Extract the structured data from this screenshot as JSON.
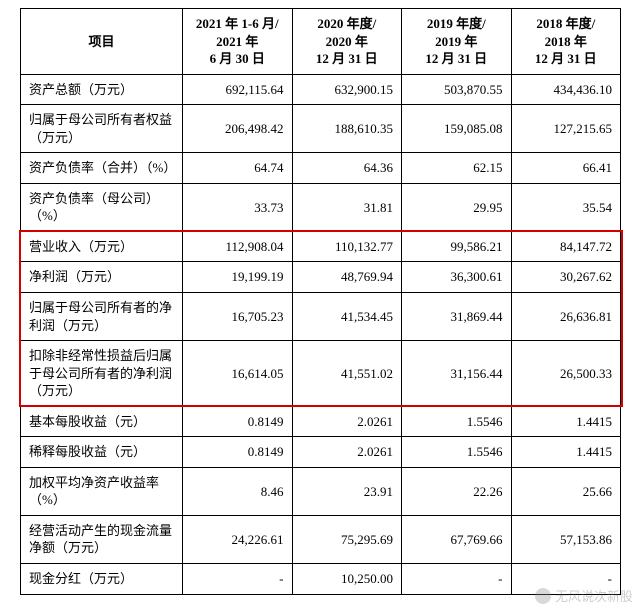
{
  "table": {
    "header_label": "项目",
    "columns": [
      {
        "line1": "2021 年 1-6 月/",
        "line2": "2021 年",
        "line3": "6 月 30 日"
      },
      {
        "line1": "2020 年度/",
        "line2": "2020 年",
        "line3": "12 月 31 日"
      },
      {
        "line1": "2019 年度/",
        "line2": "2019 年",
        "line3": "12 月 31 日"
      },
      {
        "line1": "2018 年度/",
        "line2": "2018 年",
        "line3": "12 月 31 日"
      }
    ],
    "rows": [
      {
        "label": "资产总额（万元）",
        "values": [
          "692,115.64",
          "632,900.15",
          "503,870.55",
          "434,436.10"
        ]
      },
      {
        "label": "归属于母公司所有者权益（万元）",
        "values": [
          "206,498.42",
          "188,610.35",
          "159,085.08",
          "127,215.65"
        ]
      },
      {
        "label": "资产负债率（合并）（%）",
        "values": [
          "64.74",
          "64.36",
          "62.15",
          "66.41"
        ]
      },
      {
        "label": "资产负债率（母公司）（%）",
        "values": [
          "33.73",
          "31.81",
          "29.95",
          "35.54"
        ]
      },
      {
        "label": "营业收入（万元）",
        "values": [
          "112,908.04",
          "110,132.77",
          "99,586.21",
          "84,147.72"
        ]
      },
      {
        "label": "净利润（万元）",
        "values": [
          "19,199.19",
          "48,769.94",
          "36,300.61",
          "30,267.62"
        ]
      },
      {
        "label": "归属于母公司所有者的净利润（万元）",
        "values": [
          "16,705.23",
          "41,534.45",
          "31,869.44",
          "26,636.81"
        ]
      },
      {
        "label": "扣除非经常性损益后归属于母公司所有者的净利润（万元）",
        "values": [
          "16,614.05",
          "41,551.02",
          "31,156.44",
          "26,500.33"
        ]
      },
      {
        "label": "基本每股收益（元）",
        "values": [
          "0.8149",
          "2.0261",
          "1.5546",
          "1.4415"
        ]
      },
      {
        "label": "稀释每股收益（元）",
        "values": [
          "0.8149",
          "2.0261",
          "1.5546",
          "1.4415"
        ]
      },
      {
        "label": "加权平均净资产收益率（%）",
        "values": [
          "8.46",
          "23.91",
          "22.26",
          "25.66"
        ]
      },
      {
        "label": "经营活动产生的现金流量净额（万元）",
        "values": [
          "24,226.61",
          "75,295.69",
          "67,769.66",
          "57,153.86"
        ]
      },
      {
        "label": "现金分红（万元）",
        "values": [
          "-",
          "10,250.00",
          "-",
          "-"
        ]
      }
    ]
  },
  "highlight": {
    "border_color": "#d40000",
    "border_width": 2
  },
  "watermark": {
    "text": "无风说次新股"
  },
  "style": {
    "background": "#ffffff",
    "text_color": "#000000",
    "border_color": "#000000",
    "font_size": 13,
    "header_font_weight": "bold"
  }
}
